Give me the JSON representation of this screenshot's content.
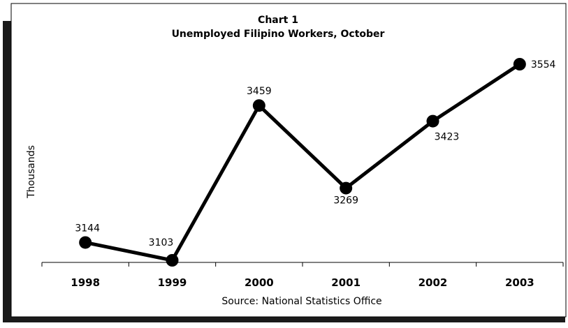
{
  "chart_data": {
    "type": "line",
    "title": "Chart 1",
    "subtitle": "Unemployed Filipino Workers, October",
    "ylabel": "Thousands",
    "xlabel": "Source: National Statistics Office",
    "categories": [
      "1998",
      "1999",
      "2000",
      "2001",
      "2002",
      "2003"
    ],
    "series": [
      {
        "values": [
          3144,
          3103,
          3459,
          3269,
          3423,
          3554
        ]
      }
    ],
    "data_labels": [
      "3144",
      "3103",
      "3459",
      "3269",
      "3423",
      "3554"
    ],
    "ylim": [
      3103,
      3554
    ],
    "grid": false,
    "legend": "none",
    "colors": {
      "line": "#000000",
      "marker": "#000000",
      "frame": "#1a1a1a",
      "background": "#ffffff"
    }
  }
}
